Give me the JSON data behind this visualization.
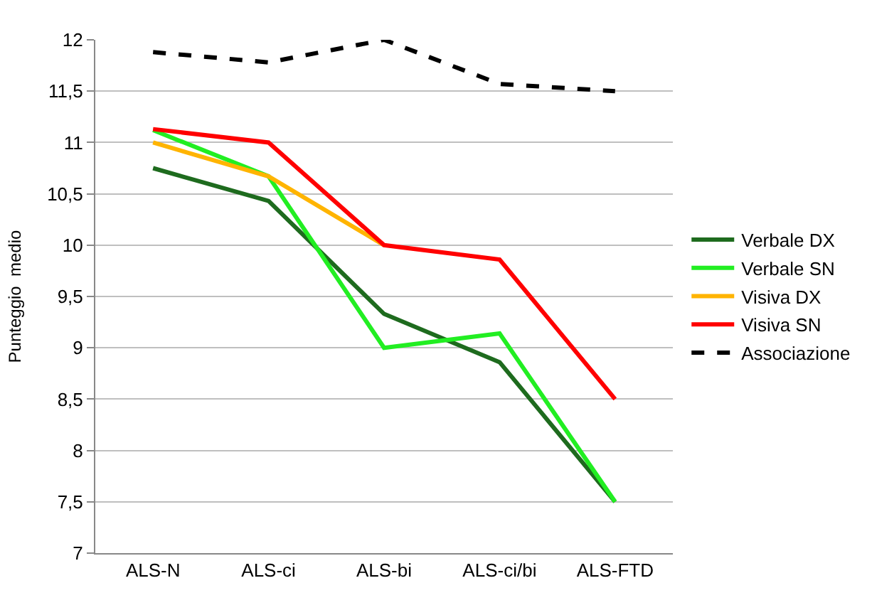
{
  "chart_data": {
    "type": "line",
    "ylabel": "Punteggio  medio",
    "categories": [
      "ALS-N",
      "ALS-ci",
      "ALS-bi",
      "ALS-ci/bi",
      "ALS-FTD"
    ],
    "series": [
      {
        "name": "Verbale DX",
        "color": "#1e6b1e",
        "values": [
          10.75,
          10.43,
          9.33,
          8.86,
          7.5
        ]
      },
      {
        "name": "Verbale SN",
        "color": "#22ee22",
        "values": [
          11.12,
          10.67,
          9.0,
          9.14,
          7.5
        ]
      },
      {
        "name": "Visiva DX",
        "color": "#ffb400",
        "values": [
          11.0,
          10.67,
          10.0,
          null,
          null
        ]
      },
      {
        "name": "Visiva SN",
        "color": "#ff0000",
        "values": [
          11.13,
          11.0,
          10.0,
          9.86,
          8.5
        ]
      },
      {
        "name": "Associazione",
        "color": "#000000",
        "line_style": "dashed",
        "values": [
          11.88,
          11.78,
          12.0,
          11.57,
          11.5
        ]
      }
    ],
    "ylim": [
      7,
      12
    ],
    "yticks": [
      7,
      {
        "value": 7.5,
        "label": "7,5"
      },
      8,
      {
        "value": 8.5,
        "label": "8,5"
      },
      9,
      {
        "value": 9.5,
        "label": "9,5"
      },
      10,
      {
        "value": 10.5,
        "label": "10,5"
      },
      11,
      {
        "value": 11.5,
        "label": "11,5"
      },
      12
    ],
    "grid": "y",
    "legend": "right",
    "marker": "none",
    "line_style": "solid"
  }
}
